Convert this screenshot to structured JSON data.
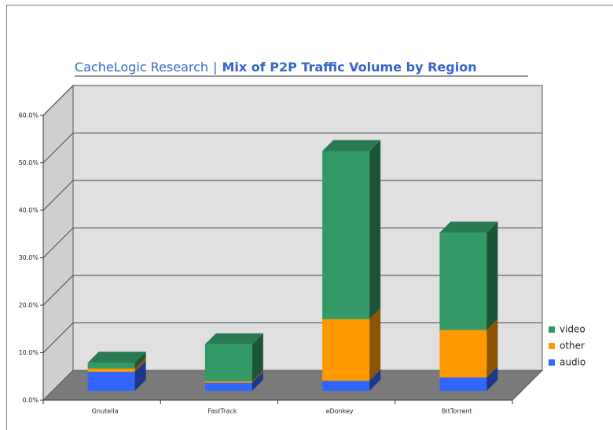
{
  "chart_data": {
    "type": "bar3d_stacked",
    "source": "CacheLogic Research",
    "title_separator": "|",
    "title": "Mix of P2P Traffic Volume by Region",
    "categories": [
      "Gnutella",
      "FastTrack",
      "eDonkey",
      "BitTorrent"
    ],
    "series": [
      {
        "name": "audio",
        "color": "#3366ff",
        "values": [
          4.0,
          1.7,
          2.1,
          2.8
        ]
      },
      {
        "name": "other",
        "color": "#ff9900",
        "values": [
          0.7,
          0.3,
          13.0,
          10.0
        ]
      },
      {
        "name": "video",
        "color": "#339966",
        "values": [
          1.2,
          7.8,
          35.4,
          20.5
        ]
      }
    ],
    "ylim": [
      0,
      60
    ],
    "yticks": [
      {
        "value": 0,
        "label": "0.0%"
      },
      {
        "value": 10,
        "label": "10.0%"
      },
      {
        "value": 20,
        "label": "20.0%"
      },
      {
        "value": 30,
        "label": "30.0%"
      },
      {
        "value": 40,
        "label": "40.0%"
      },
      {
        "value": 50,
        "label": "50.0%"
      },
      {
        "value": 60,
        "label": "60.0%"
      }
    ],
    "grid": true,
    "legend": "right"
  }
}
